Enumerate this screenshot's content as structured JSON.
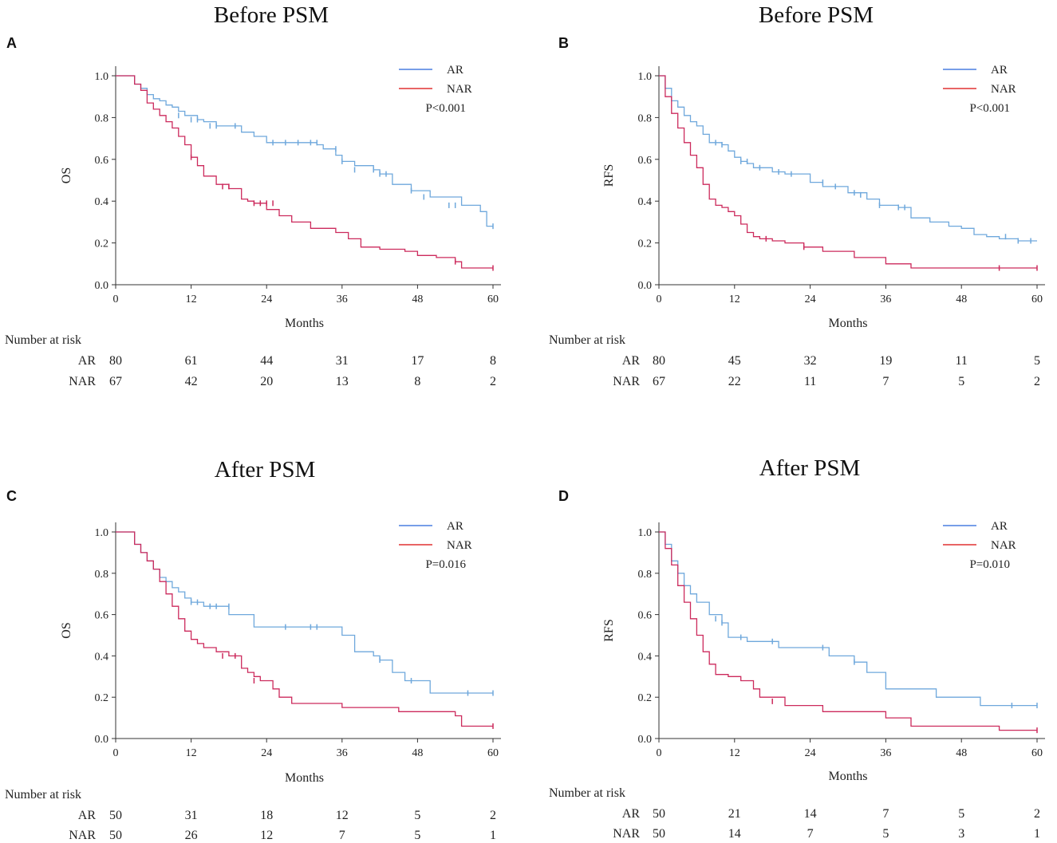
{
  "chart_data": [
    {
      "id": "A",
      "panel_label": "A",
      "type": "line",
      "title": "Before PSM",
      "xlabel": "Months",
      "ylabel": "OS",
      "xlim": [
        0,
        60
      ],
      "ylim": [
        0,
        1.0
      ],
      "xticks": [
        "0",
        "12",
        "24",
        "36",
        "48",
        "60"
      ],
      "yticks": [
        "0.0",
        "0.2",
        "0.4",
        "0.6",
        "0.8",
        "1.0"
      ],
      "legend_position": "top-right",
      "p_value": "P<0.001",
      "series": [
        {
          "name": "AR",
          "color": "#6fa8dc",
          "x": [
            0,
            3,
            4,
            5,
            6,
            7,
            8,
            9,
            10,
            11,
            13,
            14,
            16,
            20,
            22,
            24,
            28,
            32,
            33,
            35,
            36,
            38,
            41,
            42,
            44,
            47,
            50,
            55,
            57,
            58,
            59,
            60
          ],
          "y": [
            1.0,
            0.96,
            0.94,
            0.91,
            0.89,
            0.88,
            0.86,
            0.85,
            0.83,
            0.81,
            0.79,
            0.78,
            0.76,
            0.73,
            0.71,
            0.68,
            0.68,
            0.67,
            0.65,
            0.62,
            0.59,
            0.57,
            0.55,
            0.53,
            0.48,
            0.45,
            0.42,
            0.38,
            0.38,
            0.35,
            0.28,
            0.28
          ],
          "censor_x": [
            10,
            12,
            13,
            15,
            16,
            19,
            25,
            27,
            29,
            31,
            32,
            35,
            36,
            38,
            41,
            42,
            43,
            47,
            49,
            53,
            54,
            60
          ],
          "censor_y": [
            0.81,
            0.79,
            0.79,
            0.76,
            0.76,
            0.76,
            0.68,
            0.68,
            0.68,
            0.68,
            0.68,
            0.65,
            0.59,
            0.55,
            0.55,
            0.53,
            0.53,
            0.45,
            0.42,
            0.38,
            0.38,
            0.28
          ]
        },
        {
          "name": "NAR",
          "color": "#cc2a5c",
          "x": [
            0,
            3,
            4,
            5,
            6,
            7,
            8,
            9,
            10,
            11,
            12,
            13,
            14,
            15,
            16,
            18,
            20,
            21,
            22,
            24,
            26,
            28,
            31,
            35,
            37,
            39,
            42,
            46,
            48,
            51,
            54,
            55,
            60
          ],
          "y": [
            1.0,
            0.96,
            0.93,
            0.87,
            0.84,
            0.81,
            0.78,
            0.75,
            0.71,
            0.67,
            0.61,
            0.57,
            0.52,
            0.52,
            0.48,
            0.46,
            0.41,
            0.4,
            0.39,
            0.36,
            0.33,
            0.3,
            0.27,
            0.25,
            0.22,
            0.18,
            0.17,
            0.16,
            0.14,
            0.13,
            0.11,
            0.08,
            0.08
          ],
          "censor_x": [
            12,
            17,
            18,
            22,
            23,
            24,
            25,
            54,
            60
          ],
          "censor_y": [
            0.61,
            0.47,
            0.47,
            0.39,
            0.39,
            0.39,
            0.39,
            0.11,
            0.08
          ]
        }
      ],
      "risk_table": {
        "title": "Number at risk",
        "rows": [
          {
            "label": "AR",
            "values": [
              "80",
              "61",
              "44",
              "31",
              "17",
              "8"
            ]
          },
          {
            "label": "NAR",
            "values": [
              "67",
              "42",
              "20",
              "13",
              "8",
              "2"
            ]
          }
        ]
      }
    },
    {
      "id": "B",
      "panel_label": "B",
      "type": "line",
      "title": "Before PSM",
      "xlabel": "Months",
      "ylabel": "RFS",
      "xlim": [
        0,
        60
      ],
      "ylim": [
        0,
        1.0
      ],
      "xticks": [
        "0",
        "12",
        "24",
        "36",
        "48",
        "60"
      ],
      "yticks": [
        "0.0",
        "0.2",
        "0.4",
        "0.6",
        "0.8",
        "1.0"
      ],
      "legend_position": "top-right",
      "p_value": "P<0.001",
      "series": [
        {
          "name": "AR",
          "color": "#6fa8dc",
          "x": [
            0,
            1,
            2,
            3,
            4,
            5,
            6,
            7,
            8,
            10,
            11,
            12,
            13,
            14,
            15,
            18,
            20,
            24,
            26,
            30,
            33,
            35,
            38,
            40,
            43,
            46,
            48,
            50,
            52,
            54,
            57,
            60
          ],
          "y": [
            1.0,
            0.94,
            0.88,
            0.85,
            0.81,
            0.78,
            0.76,
            0.72,
            0.68,
            0.67,
            0.64,
            0.61,
            0.59,
            0.58,
            0.56,
            0.54,
            0.53,
            0.49,
            0.47,
            0.44,
            0.41,
            0.38,
            0.37,
            0.32,
            0.3,
            0.28,
            0.27,
            0.24,
            0.23,
            0.22,
            0.21,
            0.21
          ],
          "censor_x": [
            9,
            10,
            13,
            14,
            16,
            19,
            21,
            26,
            28,
            31,
            32,
            35,
            38,
            39,
            55,
            57,
            59
          ],
          "censor_y": [
            0.68,
            0.67,
            0.59,
            0.59,
            0.56,
            0.54,
            0.53,
            0.49,
            0.47,
            0.44,
            0.43,
            0.38,
            0.37,
            0.37,
            0.23,
            0.21,
            0.21
          ]
        },
        {
          "name": "NAR",
          "color": "#cc2a5c",
          "x": [
            0,
            1,
            2,
            3,
            4,
            5,
            6,
            7,
            8,
            9,
            10,
            11,
            12,
            13,
            14,
            15,
            16,
            18,
            20,
            23,
            26,
            31,
            36,
            40,
            54,
            60
          ],
          "y": [
            1.0,
            0.9,
            0.82,
            0.75,
            0.68,
            0.62,
            0.56,
            0.48,
            0.41,
            0.38,
            0.37,
            0.35,
            0.33,
            0.29,
            0.25,
            0.23,
            0.22,
            0.21,
            0.2,
            0.18,
            0.16,
            0.13,
            0.1,
            0.08,
            0.08,
            0.08
          ],
          "censor_x": [
            17,
            23,
            54,
            60
          ],
          "censor_y": [
            0.22,
            0.18,
            0.08,
            0.08
          ]
        }
      ],
      "risk_table": {
        "title": "Number at risk",
        "rows": [
          {
            "label": "AR",
            "values": [
              "80",
              "45",
              "32",
              "19",
              "11",
              "5"
            ]
          },
          {
            "label": "NAR",
            "values": [
              "67",
              "22",
              "11",
              "7",
              "5",
              "2"
            ]
          }
        ]
      }
    },
    {
      "id": "C",
      "panel_label": "C",
      "type": "line",
      "title": "After PSM",
      "xlabel": "Months",
      "ylabel": "OS",
      "xlim": [
        0,
        60
      ],
      "ylim": [
        0,
        1.0
      ],
      "xticks": [
        "0",
        "12",
        "24",
        "36",
        "48",
        "60"
      ],
      "yticks": [
        "0.0",
        "0.2",
        "0.4",
        "0.6",
        "0.8",
        "1.0"
      ],
      "legend_position": "top-right",
      "p_value": "P=0.016",
      "series": [
        {
          "name": "AR",
          "color": "#6fa8dc",
          "x": [
            0,
            3,
            4,
            5,
            6,
            7,
            8,
            9,
            10,
            11,
            12,
            14,
            18,
            22,
            26,
            32,
            36,
            38,
            41,
            42,
            44,
            46,
            50,
            60
          ],
          "y": [
            1.0,
            0.94,
            0.9,
            0.86,
            0.82,
            0.78,
            0.76,
            0.73,
            0.71,
            0.68,
            0.66,
            0.64,
            0.6,
            0.54,
            0.54,
            0.54,
            0.5,
            0.42,
            0.4,
            0.38,
            0.32,
            0.28,
            0.22,
            0.22
          ],
          "censor_x": [
            12,
            13,
            15,
            16,
            18,
            27,
            31,
            32,
            42,
            47,
            56,
            60
          ],
          "censor_y": [
            0.66,
            0.66,
            0.64,
            0.64,
            0.64,
            0.54,
            0.54,
            0.54,
            0.38,
            0.28,
            0.22,
            0.22
          ]
        },
        {
          "name": "NAR",
          "color": "#cc2a5c",
          "x": [
            0,
            3,
            4,
            5,
            6,
            7,
            8,
            9,
            10,
            11,
            12,
            13,
            14,
            16,
            18,
            20,
            21,
            22,
            23,
            25,
            26,
            28,
            36,
            45,
            54,
            55,
            60
          ],
          "y": [
            1.0,
            0.94,
            0.9,
            0.86,
            0.82,
            0.76,
            0.7,
            0.64,
            0.58,
            0.52,
            0.48,
            0.46,
            0.44,
            0.42,
            0.4,
            0.34,
            0.32,
            0.3,
            0.28,
            0.24,
            0.2,
            0.17,
            0.15,
            0.13,
            0.11,
            0.06,
            0.06
          ],
          "censor_x": [
            17,
            19,
            22,
            60
          ],
          "censor_y": [
            0.4,
            0.4,
            0.28,
            0.06
          ]
        }
      ],
      "risk_table": {
        "title": "Number at risk",
        "rows": [
          {
            "label": "AR",
            "values": [
              "50",
              "31",
              "18",
              "12",
              "5",
              "2"
            ]
          },
          {
            "label": "NAR",
            "values": [
              "50",
              "26",
              "12",
              "7",
              "5",
              "1"
            ]
          }
        ]
      }
    },
    {
      "id": "D",
      "panel_label": "D",
      "type": "line",
      "title": "After PSM",
      "xlabel": "Months",
      "ylabel": "RFS",
      "xlim": [
        0,
        60
      ],
      "ylim": [
        0,
        1.0
      ],
      "xticks": [
        "0",
        "12",
        "24",
        "36",
        "48",
        "60"
      ],
      "yticks": [
        "0.0",
        "0.2",
        "0.4",
        "0.6",
        "0.8",
        "1.0"
      ],
      "legend_position": "top-right",
      "p_value": "P=0.010",
      "series": [
        {
          "name": "AR",
          "color": "#6fa8dc",
          "x": [
            0,
            1,
            2,
            3,
            4,
            5,
            6,
            8,
            10,
            11,
            14,
            19,
            27,
            31,
            33,
            36,
            44,
            51,
            60
          ],
          "y": [
            1.0,
            0.94,
            0.86,
            0.8,
            0.74,
            0.7,
            0.66,
            0.6,
            0.56,
            0.49,
            0.47,
            0.44,
            0.4,
            0.37,
            0.32,
            0.24,
            0.2,
            0.16,
            0.16
          ],
          "censor_x": [
            9,
            10,
            13,
            18,
            26,
            31,
            56,
            60
          ],
          "censor_y": [
            0.58,
            0.56,
            0.49,
            0.47,
            0.44,
            0.37,
            0.16,
            0.16
          ]
        },
        {
          "name": "NAR",
          "color": "#cc2a5c",
          "x": [
            0,
            1,
            2,
            3,
            4,
            5,
            6,
            7,
            8,
            9,
            11,
            13,
            15,
            16,
            20,
            26,
            36,
            40,
            54,
            60
          ],
          "y": [
            1.0,
            0.92,
            0.84,
            0.74,
            0.66,
            0.58,
            0.5,
            0.42,
            0.36,
            0.31,
            0.3,
            0.28,
            0.24,
            0.2,
            0.16,
            0.13,
            0.1,
            0.06,
            0.04,
            0.04
          ],
          "censor_x": [
            18,
            60
          ],
          "censor_y": [
            0.18,
            0.04
          ]
        }
      ],
      "risk_table": {
        "title": "Number at risk",
        "rows": [
          {
            "label": "AR",
            "values": [
              "50",
              "21",
              "14",
              "7",
              "5",
              "2"
            ]
          },
          {
            "label": "NAR",
            "values": [
              "50",
              "14",
              "7",
              "5",
              "3",
              "1"
            ]
          }
        ]
      }
    }
  ]
}
